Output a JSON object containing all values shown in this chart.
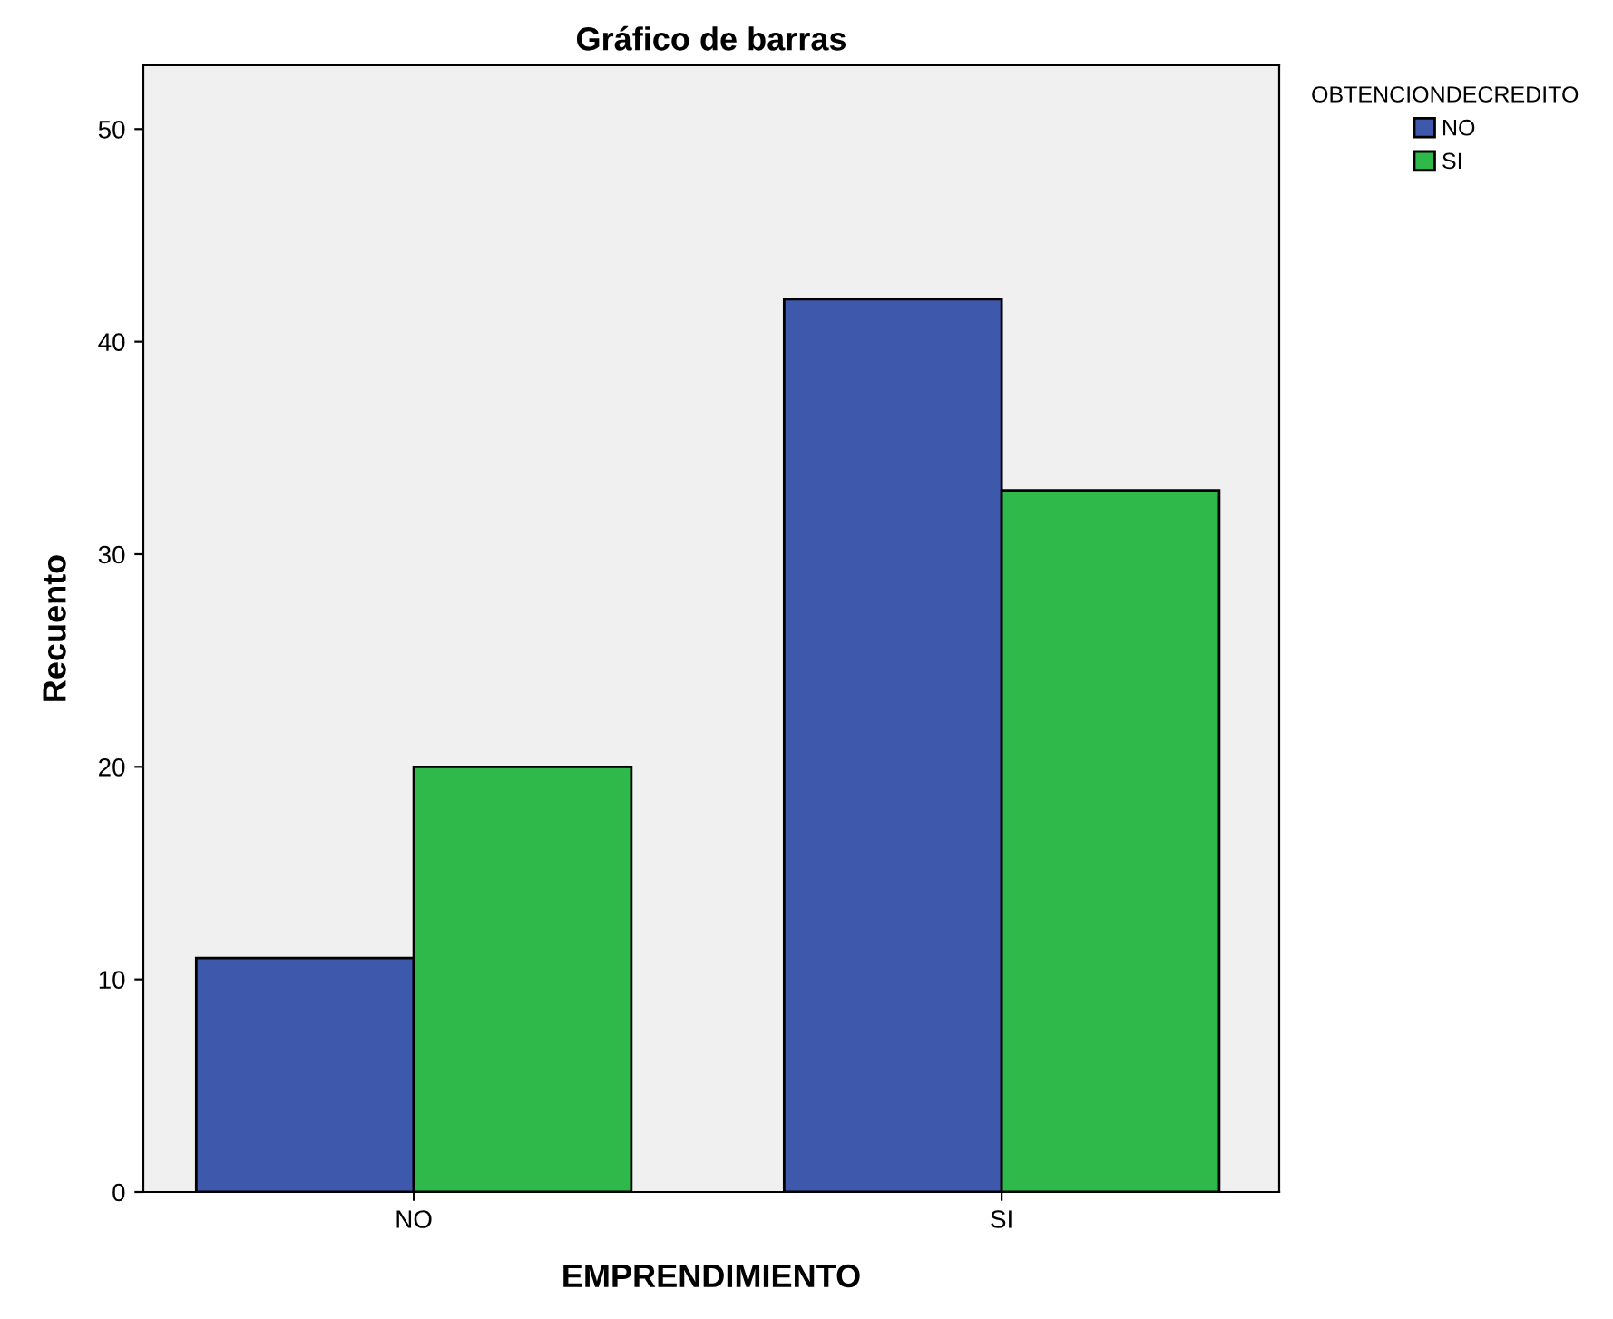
{
  "chart_data": {
    "type": "bar",
    "title": "Gráfico de barras",
    "xlabel": "EMPRENDIMIENTO",
    "ylabel": "Recuento",
    "legend_title": "OBTENCIONDECREDITO",
    "categories": [
      "NO",
      "SI"
    ],
    "series": [
      {
        "name": "NO",
        "color": "#3e58ac",
        "values": [
          11,
          42
        ]
      },
      {
        "name": "SI",
        "color": "#2fb94a",
        "values": [
          20,
          33
        ]
      }
    ],
    "ylim": [
      0,
      53
    ],
    "yticks": [
      0,
      10,
      20,
      30,
      40,
      50
    ],
    "grid": false,
    "legend": "top right"
  }
}
